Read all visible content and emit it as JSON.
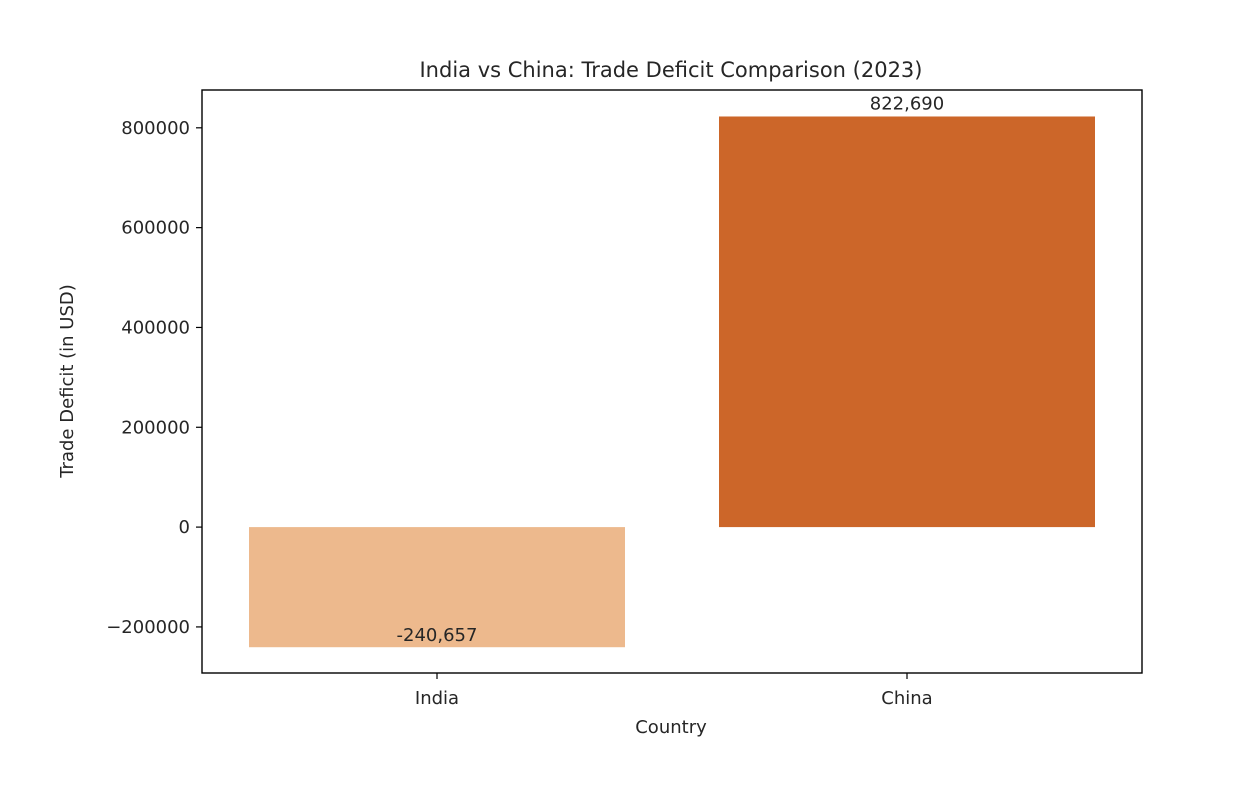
{
  "chart_data": {
    "type": "bar",
    "title": "India vs China: Trade Deficit Comparison (2023)",
    "xlabel": "Country",
    "ylabel": "Trade Deficit (in USD)",
    "categories": [
      "India",
      "China"
    ],
    "values": [
      -240657,
      822690
    ],
    "value_labels": [
      "-240,657",
      "822,690"
    ],
    "ylim": [
      -292324,
      875757
    ],
    "yticks": [
      -200000,
      0,
      200000,
      400000,
      600000,
      800000
    ],
    "ytick_labels": [
      "−200000",
      "0",
      "200000",
      "400000",
      "600000",
      "800000"
    ],
    "colors": [
      "#edb98d",
      "#cc6629"
    ],
    "grid": false,
    "legend": "none"
  }
}
